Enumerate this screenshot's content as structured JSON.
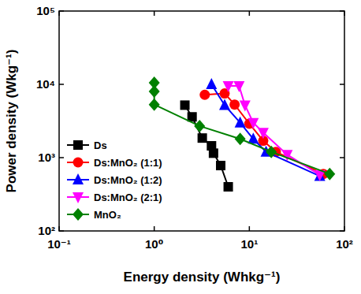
{
  "chart_data": {
    "type": "line",
    "xlabel": "Energy density (Whkg⁻¹)",
    "ylabel": "Power density (Wkg⁻¹)",
    "log": true,
    "grid": false,
    "legend": "lower left",
    "xlim": [
      0.1,
      100
    ],
    "ylim": [
      100,
      100000
    ],
    "xticks": [
      {
        "value": 0.1,
        "label": "10⁻¹"
      },
      {
        "value": 1,
        "label": "10⁰"
      },
      {
        "value": 10,
        "label": "10¹"
      },
      {
        "value": 100,
        "label": "10²"
      }
    ],
    "yticks": [
      {
        "value": 100,
        "label": "10²"
      },
      {
        "value": 1000,
        "label": "10³"
      },
      {
        "value": 10000,
        "label": "10⁴"
      },
      {
        "value": 100000,
        "label": "10⁵"
      }
    ],
    "series": [
      {
        "name": "Ds",
        "color": "#000000",
        "marker": "square",
        "line_style": "solid",
        "x": [
          2.1,
          2.5,
          3.2,
          4.0,
          4.2,
          5.0,
          6.0
        ],
        "values": [
          5200,
          3600,
          1850,
          1450,
          1150,
          780,
          400
        ]
      },
      {
        "name": "Ds:MnO₂ (1:1)",
        "color": "#ff0000",
        "marker": "circle",
        "line_style": "solid",
        "x": [
          3.4,
          5.5,
          7.0,
          10,
          14,
          19,
          60
        ],
        "values": [
          7200,
          7500,
          5300,
          2900,
          1700,
          1200,
          600
        ]
      },
      {
        "name": "Ds:MnO₂ (1:2)",
        "color": "#0000ff",
        "marker": "triangle-up",
        "line_style": "solid",
        "x": [
          4.0,
          5.5,
          8.0,
          11,
          15,
          55
        ],
        "values": [
          10000,
          5200,
          3000,
          1800,
          1200,
          560
        ]
      },
      {
        "name": "Ds:MnO₂ (2:1)",
        "color": "#ff00ff",
        "marker": "triangle-down",
        "line_style": "solid",
        "x": [
          6.0,
          7.8,
          9.0,
          11,
          14,
          25,
          55
        ],
        "values": [
          9500,
          9500,
          5200,
          3000,
          2200,
          1100,
          580
        ]
      },
      {
        "name": "MnO₂",
        "color": "#008000",
        "marker": "diamond",
        "line_style": "solid",
        "x": [
          1.0,
          1.0,
          1.0,
          3.0,
          8.0,
          17,
          70
        ],
        "values": [
          10500,
          8000,
          5300,
          2700,
          1800,
          1200,
          600
        ]
      }
    ]
  }
}
